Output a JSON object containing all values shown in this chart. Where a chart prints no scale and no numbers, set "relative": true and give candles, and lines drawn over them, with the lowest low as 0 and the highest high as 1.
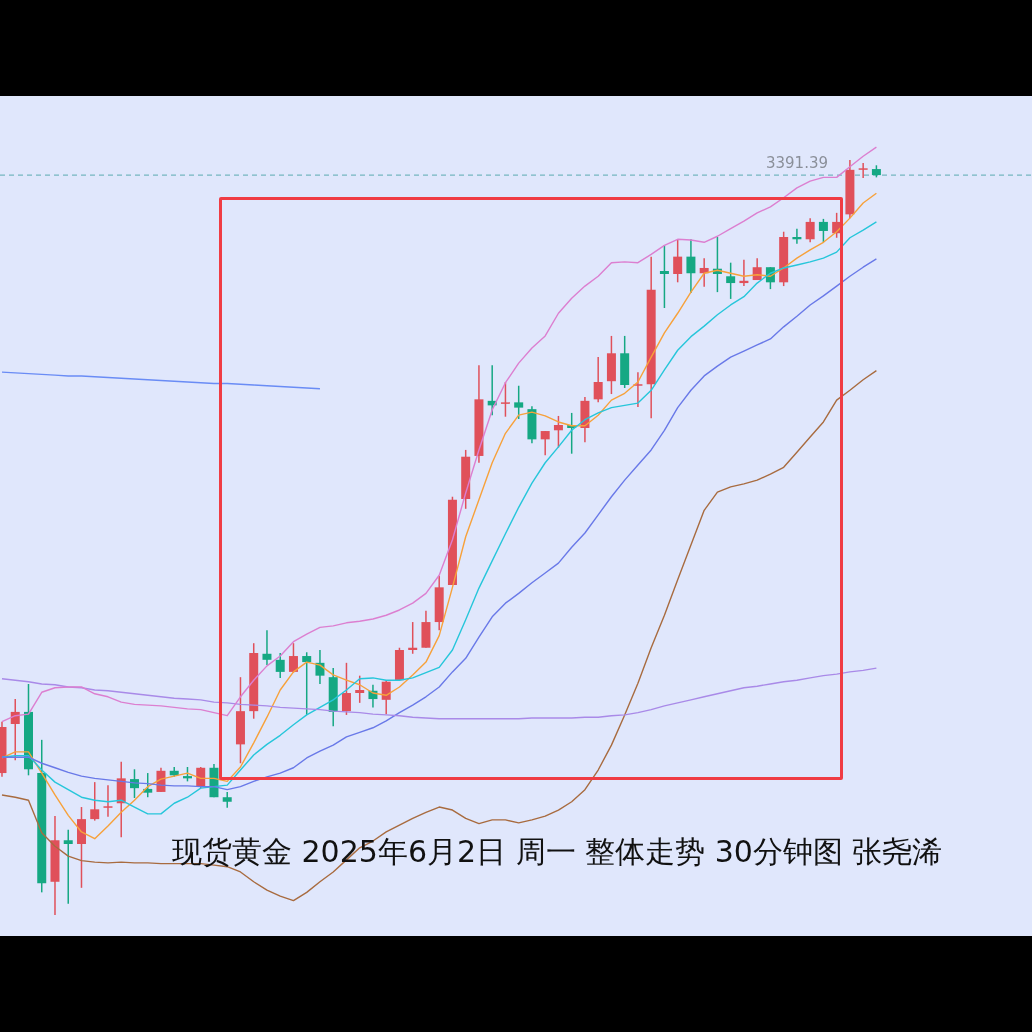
{
  "chart_data": {
    "type": "candlestick",
    "title": "现货黄金 2025年6月2日 周一 整体走势 30分钟图 张尧浠",
    "relative": true,
    "tick_labels": false,
    "legend": false,
    "categories": [
      null,
      null,
      null,
      null,
      null,
      null,
      null,
      null,
      null,
      null,
      null,
      null,
      null,
      null,
      null,
      null,
      null,
      null,
      null,
      null,
      null,
      null,
      null,
      null,
      null,
      null,
      null,
      null,
      null,
      null,
      null,
      null,
      null,
      null,
      null,
      null,
      null,
      null,
      null,
      null,
      null,
      null,
      null,
      null,
      null,
      null,
      null,
      null,
      null,
      null,
      null,
      null,
      null,
      null,
      null,
      null,
      null,
      null,
      null,
      null,
      null,
      null,
      null,
      null,
      null,
      null,
      null
    ],
    "ohlc": [
      [
        0.188,
        0.256,
        0.183,
        0.249
      ],
      [
        0.253,
        0.286,
        0.205,
        0.269
      ],
      [
        0.269,
        0.306,
        0.185,
        0.193
      ],
      [
        0.188,
        0.232,
        0.03,
        0.042
      ],
      [
        0.044,
        0.131,
        0,
        0.099
      ],
      [
        0.099,
        0.113,
        0.015,
        0.094
      ],
      [
        0.094,
        0.143,
        0.036,
        0.127
      ],
      [
        0.127,
        0.176,
        0.125,
        0.14
      ],
      [
        0.142,
        0.172,
        0.13,
        0.144
      ],
      [
        0.148,
        0.203,
        0.103,
        0.181
      ],
      [
        0.18,
        0.193,
        0.155,
        0.168
      ],
      [
        0.167,
        0.188,
        0.156,
        0.162
      ],
      [
        0.163,
        0.195,
        0.163,
        0.191
      ],
      [
        0.191,
        0.196,
        0.183,
        0.185
      ],
      [
        0.184,
        0.196,
        0.177,
        0.181
      ],
      [
        0.17,
        0.196,
        0.168,
        0.195
      ],
      [
        0.195,
        0.2,
        0.156,
        0.156
      ],
      [
        0.156,
        0.163,
        0.142,
        0.15
      ],
      [
        0.226,
        0.315,
        0.201,
        0.27
      ],
      [
        0.27,
        0.36,
        0.26,
        0.347
      ],
      [
        0.346,
        0.377,
        0.331,
        0.338
      ],
      [
        0.338,
        0.347,
        0.314,
        0.322
      ],
      [
        0.322,
        0.36,
        0.321,
        0.343
      ],
      [
        0.343,
        0.348,
        0.265,
        0.335
      ],
      [
        0.334,
        0.351,
        0.306,
        0.317
      ],
      [
        0.315,
        0.327,
        0.25,
        0.269
      ],
      [
        0.27,
        0.334,
        0.265,
        0.294
      ],
      [
        0.294,
        0.317,
        0.281,
        0.298
      ],
      [
        0.297,
        0.305,
        0.275,
        0.286
      ],
      [
        0.285,
        0.311,
        0.266,
        0.309
      ],
      [
        0.311,
        0.354,
        0.311,
        0.351
      ],
      [
        0.351,
        0.388,
        0.346,
        0.354
      ],
      [
        0.354,
        0.403,
        0.354,
        0.388
      ],
      [
        0.388,
        0.449,
        0.377,
        0.434
      ],
      [
        0.437,
        0.554,
        0.437,
        0.55
      ],
      [
        0.551,
        0.616,
        0.538,
        0.607
      ],
      [
        0.608,
        0.728,
        0.599,
        0.683
      ],
      [
        0.681,
        0.728,
        0.662,
        0.675
      ],
      [
        0.678,
        0.706,
        0.66,
        0.679
      ],
      [
        0.679,
        0.701,
        0.657,
        0.672
      ],
      [
        0.67,
        0.674,
        0.625,
        0.63
      ],
      [
        0.63,
        0.641,
        0.609,
        0.641
      ],
      [
        0.642,
        0.661,
        0.619,
        0.649
      ],
      [
        0.649,
        0.665,
        0.611,
        0.645
      ],
      [
        0.645,
        0.686,
        0.626,
        0.681
      ],
      [
        0.683,
        0.739,
        0.679,
        0.706
      ],
      [
        0.707,
        0.767,
        0.69,
        0.744
      ],
      [
        0.744,
        0.767,
        0.698,
        0.702
      ],
      [
        0.702,
        0.719,
        0.673,
        0.703
      ],
      [
        0.703,
        0.872,
        0.658,
        0.828
      ],
      [
        0.853,
        0.887,
        0.804,
        0.849
      ],
      [
        0.849,
        0.895,
        0.838,
        0.872
      ],
      [
        0.872,
        0.895,
        0.824,
        0.85
      ],
      [
        0.85,
        0.87,
        0.832,
        0.857
      ],
      [
        0.856,
        0.898,
        0.825,
        0.849
      ],
      [
        0.846,
        0.864,
        0.816,
        0.837
      ],
      [
        0.837,
        0.868,
        0.833,
        0.84
      ],
      [
        0.841,
        0.87,
        0.841,
        0.858
      ],
      [
        0.858,
        0.858,
        0.829,
        0.838
      ],
      [
        0.838,
        0.905,
        0.833,
        0.898
      ],
      [
        0.898,
        0.909,
        0.889,
        0.895
      ],
      [
        0.895,
        0.923,
        0.891,
        0.918
      ],
      [
        0.918,
        0.922,
        0.891,
        0.906
      ],
      [
        0.903,
        0.93,
        0.897,
        0.918
      ],
      [
        0.928,
        1,
        0.923,
        0.987
      ],
      [
        0.988,
        0.996,
        0.976,
        0.989
      ],
      [
        0.988,
        0.993,
        0.977,
        0.98
      ]
    ],
    "series": [
      {
        "type": "line",
        "color": "#dc7fd0",
        "values": [
          0.256,
          0.264,
          0.266,
          0.295,
          0.301,
          0.302,
          0.302,
          0.293,
          0.289,
          0.282,
          0.279,
          0.278,
          0.277,
          0.275,
          0.273,
          0.272,
          0.268,
          0.264,
          0.289,
          0.311,
          0.33,
          0.343,
          0.362,
          0.372,
          0.381,
          0.383,
          0.387,
          0.389,
          0.392,
          0.397,
          0.404,
          0.413,
          0.426,
          0.45,
          0.497,
          0.559,
          0.616,
          0.669,
          0.705,
          0.731,
          0.751,
          0.767,
          0.797,
          0.817,
          0.833,
          0.846,
          0.864,
          0.865,
          0.864,
          0.875,
          0.887,
          0.895,
          0.894,
          0.891,
          0.899,
          0.909,
          0.919,
          0.93,
          0.938,
          0.95,
          0.963,
          0.972,
          0.977,
          0.977,
          0.991,
          1.005,
          1.017
        ]
      },
      {
        "type": "line",
        "color": "#a98ae8",
        "values": [
          0.313,
          0.311,
          0.309,
          0.306,
          0.305,
          0.302,
          0.301,
          0.298,
          0.297,
          0.295,
          0.293,
          0.291,
          0.289,
          0.287,
          0.286,
          0.285,
          0.282,
          0.281,
          0.279,
          0.278,
          0.277,
          0.275,
          0.274,
          0.273,
          0.272,
          0.27,
          0.269,
          0.268,
          0.266,
          0.265,
          0.264,
          0.262,
          0.261,
          0.26,
          0.26,
          0.26,
          0.26,
          0.26,
          0.26,
          0.26,
          0.261,
          0.261,
          0.261,
          0.261,
          0.262,
          0.262,
          0.264,
          0.265,
          0.268,
          0.272,
          0.277,
          0.281,
          0.285,
          0.289,
          0.293,
          0.297,
          0.301,
          0.303,
          0.306,
          0.309,
          0.311,
          0.314,
          0.317,
          0.319,
          0.322,
          0.324,
          0.327
        ]
      },
      {
        "type": "line",
        "color": "#a86b3f",
        "values": [
          0.159,
          0.156,
          0.152,
          0.109,
          0.091,
          0.078,
          0.072,
          0.07,
          0.069,
          0.07,
          0.069,
          0.069,
          0.068,
          0.068,
          0.068,
          0.068,
          0.066,
          0.064,
          0.057,
          0.044,
          0.033,
          0.025,
          0.019,
          0.03,
          0.044,
          0.057,
          0.073,
          0.089,
          0.098,
          0.11,
          0.119,
          0.128,
          0.136,
          0.143,
          0.139,
          0.128,
          0.121,
          0.126,
          0.126,
          0.122,
          0.126,
          0.131,
          0.139,
          0.15,
          0.166,
          0.192,
          0.225,
          0.265,
          0.307,
          0.354,
          0.397,
          0.444,
          0.49,
          0.536,
          0.56,
          0.567,
          0.571,
          0.576,
          0.584,
          0.593,
          0.613,
          0.633,
          0.653,
          0.682,
          0.695,
          0.709,
          0.721
        ]
      },
      {
        "type": "line",
        "color": "#6979e8",
        "values": [
          0.209,
          0.209,
          0.209,
          0.201,
          0.195,
          0.189,
          0.184,
          0.181,
          0.179,
          0.177,
          0.175,
          0.174,
          0.172,
          0.171,
          0.171,
          0.17,
          0.17,
          0.166,
          0.17,
          0.177,
          0.183,
          0.188,
          0.195,
          0.208,
          0.217,
          0.225,
          0.236,
          0.242,
          0.248,
          0.257,
          0.268,
          0.278,
          0.289,
          0.302,
          0.322,
          0.34,
          0.368,
          0.395,
          0.413,
          0.426,
          0.44,
          0.453,
          0.466,
          0.487,
          0.506,
          0.53,
          0.554,
          0.576,
          0.596,
          0.616,
          0.642,
          0.672,
          0.695,
          0.714,
          0.727,
          0.739,
          0.747,
          0.755,
          0.763,
          0.779,
          0.793,
          0.808,
          0.82,
          0.833,
          0.846,
          0.858,
          0.869
        ]
      },
      {
        "type": "line",
        "color": "#26c6da",
        "values": [
          0.209,
          0.211,
          0.211,
          0.192,
          0.176,
          0.166,
          0.156,
          0.152,
          0.15,
          0.152,
          0.143,
          0.134,
          0.134,
          0.148,
          0.156,
          0.168,
          0.17,
          0.172,
          0.192,
          0.212,
          0.226,
          0.238,
          0.252,
          0.265,
          0.275,
          0.285,
          0.298,
          0.313,
          0.314,
          0.311,
          0.311,
          0.314,
          0.321,
          0.328,
          0.351,
          0.391,
          0.433,
          0.469,
          0.505,
          0.54,
          0.572,
          0.599,
          0.62,
          0.642,
          0.656,
          0.665,
          0.672,
          0.675,
          0.678,
          0.695,
          0.722,
          0.748,
          0.766,
          0.78,
          0.795,
          0.808,
          0.819,
          0.837,
          0.85,
          0.857,
          0.861,
          0.865,
          0.87,
          0.878,
          0.897,
          0.907,
          0.918
        ]
      },
      {
        "type": "line",
        "color": "#f7a13a",
        "values": [
          0.208,
          0.216,
          0.216,
          0.188,
          0.159,
          0.132,
          0.11,
          0.101,
          0.118,
          0.136,
          0.152,
          0.17,
          0.18,
          0.184,
          0.188,
          0.181,
          0.181,
          0.177,
          0.196,
          0.228,
          0.262,
          0.298,
          0.322,
          0.335,
          0.331,
          0.318,
          0.311,
          0.305,
          0.294,
          0.291,
          0.302,
          0.318,
          0.335,
          0.37,
          0.434,
          0.501,
          0.55,
          0.599,
          0.638,
          0.662,
          0.666,
          0.661,
          0.653,
          0.648,
          0.648,
          0.662,
          0.682,
          0.691,
          0.706,
          0.739,
          0.771,
          0.797,
          0.825,
          0.85,
          0.854,
          0.85,
          0.846,
          0.848,
          0.846,
          0.857,
          0.87,
          0.881,
          0.891,
          0.905,
          0.923,
          0.943,
          0.956
        ]
      },
      {
        "type": "line",
        "color": "#6a8cf5",
        "values": [
          0.719,
          0.718,
          0.717,
          0.716,
          0.715,
          0.714,
          0.714,
          0.713,
          0.712,
          0.711,
          0.71,
          0.709,
          0.708,
          0.707,
          0.706,
          0.705,
          0.704,
          0.704,
          0.703,
          0.702,
          0.701,
          0.7,
          0.699,
          0.698,
          0.697,
          null,
          null,
          null,
          null,
          null,
          null,
          null,
          null,
          null,
          null,
          null,
          null,
          null,
          null,
          null,
          null,
          null,
          null,
          null,
          null,
          null,
          null,
          null,
          null,
          null,
          null,
          null,
          null,
          null,
          null,
          null,
          null,
          null,
          null,
          null,
          null,
          null,
          null,
          null,
          null,
          null,
          null
        ]
      }
    ],
    "ref_lines": [
      {
        "axis": "y",
        "value": 0.98,
        "color": "#5aaab0",
        "line_style": "dashed"
      }
    ],
    "annotations": [
      "3391.39"
    ]
  }
}
